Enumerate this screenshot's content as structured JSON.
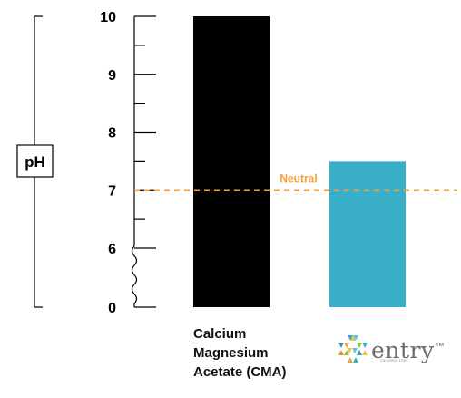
{
  "chart_data": {
    "type": "bar",
    "ylabel": "pH",
    "y_ticks": [
      {
        "label": "10",
        "value": 10
      },
      {
        "label": "9",
        "value": 9
      },
      {
        "label": "8",
        "value": 8
      },
      {
        "label": "7",
        "value": 7
      },
      {
        "label": "6",
        "value": 6
      },
      {
        "label": "0",
        "value": 0
      }
    ],
    "axis_break": {
      "between": [
        0,
        6
      ]
    },
    "ylim": [
      0,
      10
    ],
    "grid": false,
    "categories": [
      "Calcium Magnesium Acetate (CMA)",
      "entry"
    ],
    "category_label_lines": [
      "Calcium",
      "Magnesium",
      "Acetate (CMA)"
    ],
    "values": [
      10,
      7.5
    ],
    "bar_colors": [
      "#000000",
      "#3aafc9"
    ],
    "reference_line": {
      "value": 7,
      "label": "Neutral",
      "color": "#f2a13a",
      "style": "dashed"
    },
    "brand_logo": {
      "name": "entry",
      "trademark": "™",
      "subtext": "CHLORIDE FREE"
    }
  }
}
